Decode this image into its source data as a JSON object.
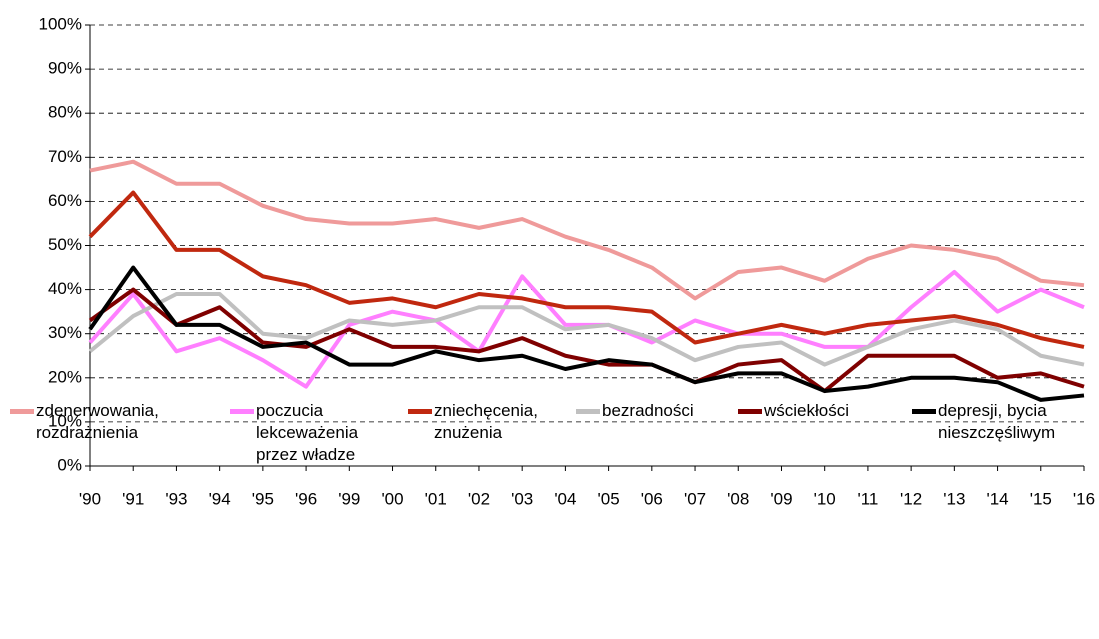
{
  "chart_data": {
    "type": "line",
    "categories": [
      "'90",
      "'91",
      "'93",
      "'94",
      "'95",
      "'96",
      "'99",
      "'00",
      "'01",
      "'02",
      "'03",
      "'04",
      "'05",
      "'06",
      "'07",
      "'08",
      "'09",
      "'10",
      "'11",
      "'12",
      "'13",
      "'14",
      "'15",
      "'16"
    ],
    "series": [
      {
        "name": "zdenerwowania, rozdrażnienia",
        "color": "#ef9a9a",
        "values": [
          67,
          69,
          64,
          64,
          59,
          56,
          55,
          55,
          56,
          54,
          56,
          52,
          49,
          45,
          38,
          44,
          45,
          42,
          47,
          50,
          49,
          47,
          42,
          41
        ]
      },
      {
        "name": "poczucia lekceważenia przez władze",
        "color": "#ff7fff",
        "values": [
          28,
          39,
          26,
          29,
          24,
          18,
          32,
          35,
          33,
          26,
          43,
          32,
          32,
          28,
          33,
          30,
          30,
          27,
          27,
          36,
          44,
          35,
          40,
          36
        ]
      },
      {
        "name": "zniechęcenia, znużenia",
        "color": "#c0280f",
        "values": [
          52,
          62,
          49,
          49,
          43,
          41,
          37,
          38,
          36,
          39,
          38,
          36,
          36,
          35,
          28,
          30,
          32,
          30,
          32,
          33,
          34,
          32,
          29,
          27
        ]
      },
      {
        "name": "bezradności",
        "color": "#c0c0c0",
        "values": [
          26,
          34,
          39,
          39,
          30,
          29,
          33,
          32,
          33,
          36,
          36,
          31,
          32,
          29,
          24,
          27,
          28,
          23,
          27,
          31,
          33,
          31,
          25,
          23
        ]
      },
      {
        "name": "wściekłości",
        "color": "#7f0000",
        "values": [
          33,
          40,
          32,
          36,
          28,
          27,
          31,
          27,
          27,
          26,
          29,
          25,
          23,
          23,
          19,
          23,
          24,
          17,
          25,
          25,
          25,
          20,
          21,
          18
        ]
      },
      {
        "name": "depresji, bycia nieszczęśliwym",
        "color": "#000000",
        "values": [
          31,
          45,
          32,
          32,
          27,
          28,
          23,
          23,
          26,
          24,
          25,
          22,
          24,
          23,
          19,
          21,
          21,
          17,
          18,
          20,
          20,
          19,
          15,
          16
        ]
      }
    ],
    "ylim": [
      0,
      100
    ],
    "yticks": [
      {
        "value": 0,
        "label": "0%"
      },
      {
        "value": 10,
        "label": "10%"
      },
      {
        "value": 20,
        "label": "20%"
      },
      {
        "value": 30,
        "label": "30%"
      },
      {
        "value": 40,
        "label": "40%"
      },
      {
        "value": 50,
        "label": "50%"
      },
      {
        "value": 60,
        "label": "60%"
      },
      {
        "value": 70,
        "label": "70%"
      },
      {
        "value": 80,
        "label": "80%"
      },
      {
        "value": 90,
        "label": "90%"
      },
      {
        "value": 100,
        "label": "100%"
      }
    ],
    "grid": true
  }
}
